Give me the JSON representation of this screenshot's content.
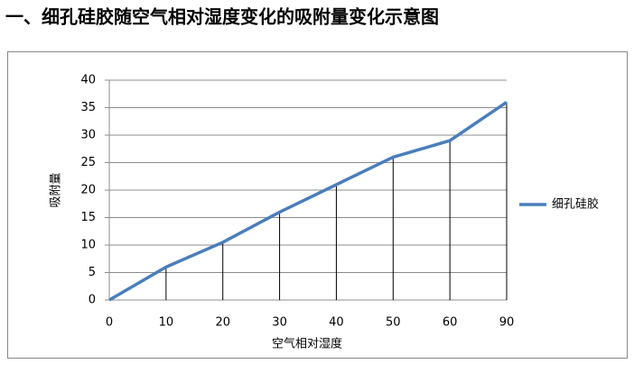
{
  "chart_data": {
    "type": "line",
    "title": "一、细孔硅胶随空气相对湿度变化的吸附量变化示意图",
    "x_label": "空气相对湿度",
    "y_label": "吸附量",
    "categories": [
      "0",
      "10",
      "20",
      "30",
      "40",
      "50",
      "60",
      "90"
    ],
    "series": [
      {
        "name": "细孔硅胶",
        "color": "#4a7ebb",
        "values": [
          0,
          6,
          10.5,
          16,
          21,
          26,
          29,
          36
        ]
      }
    ],
    "ylim": [
      0,
      40
    ],
    "yticks": [
      0,
      5,
      10,
      15,
      20,
      25,
      30,
      35,
      40
    ],
    "grid": true,
    "drop_lines": true,
    "legend": "right"
  }
}
